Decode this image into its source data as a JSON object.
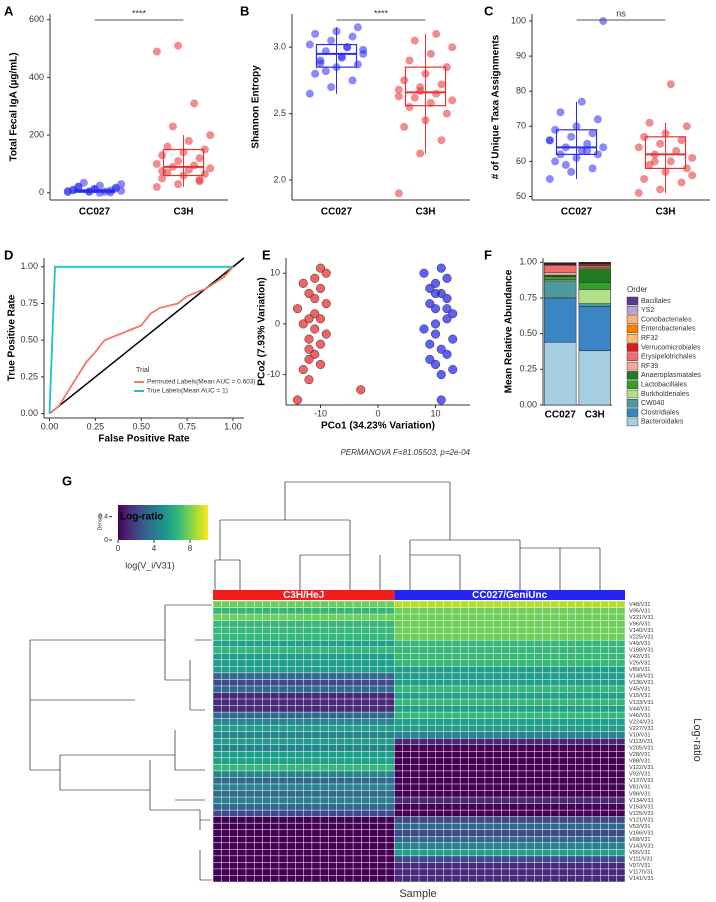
{
  "chart_data": [
    {
      "type": "box",
      "panel": "A",
      "ylabel": "Total Fecal IgA (µg/mL)",
      "categories": [
        "CC027",
        "C3H"
      ],
      "colors": [
        "#2b2bf0",
        "#e8302f"
      ],
      "ylim": [
        -25,
        620
      ],
      "yticks": [
        0,
        200,
        400,
        600
      ],
      "significance": "****",
      "boxes": [
        {
          "q1": 2,
          "median": 5,
          "q3": 10,
          "low": 0,
          "high": 25,
          "points": [
            2,
            5,
            8,
            10,
            12,
            15,
            20,
            25,
            30,
            35,
            4,
            6,
            3,
            1,
            9,
            14,
            18,
            22,
            0,
            7
          ]
        },
        {
          "q1": 60,
          "median": 90,
          "q3": 150,
          "low": 20,
          "high": 200,
          "points": [
            20,
            30,
            45,
            50,
            60,
            65,
            70,
            80,
            85,
            90,
            95,
            100,
            110,
            120,
            130,
            140,
            150,
            160,
            180,
            200,
            230,
            310,
            490,
            510,
            40,
            75
          ]
        }
      ]
    },
    {
      "type": "box",
      "panel": "B",
      "ylabel": "Shannon Entropy",
      "categories": [
        "CC027",
        "C3H"
      ],
      "colors": [
        "#2b2bf0",
        "#e8302f"
      ],
      "ylim": [
        1.85,
        3.25
      ],
      "yticks": [
        {
          "value": 2,
          "label": "2.0"
        },
        2.5,
        {
          "value": 3,
          "label": "3.0"
        }
      ],
      "significance": "****",
      "boxes": [
        {
          "q1": 2.85,
          "median": 2.95,
          "q3": 3.02,
          "low": 2.65,
          "high": 3.15,
          "points": [
            2.65,
            2.7,
            2.75,
            2.8,
            2.85,
            2.87,
            2.9,
            2.92,
            2.95,
            2.97,
            3.0,
            3.02,
            3.05,
            3.08,
            3.1,
            3.12,
            3.15,
            2.88,
            2.93,
            2.98,
            2.82,
            3.0
          ]
        },
        {
          "q1": 2.56,
          "median": 2.66,
          "q3": 2.85,
          "low": 2.2,
          "high": 3.1,
          "points": [
            1.9,
            2.2,
            2.3,
            2.4,
            2.45,
            2.5,
            2.55,
            2.58,
            2.6,
            2.62,
            2.65,
            2.68,
            2.7,
            2.72,
            2.75,
            2.8,
            2.85,
            2.9,
            2.95,
            3.0,
            3.05,
            3.1,
            2.63,
            2.67
          ]
        }
      ]
    },
    {
      "type": "box",
      "panel": "C",
      "ylabel": "# of Unique Taxa Assignments",
      "categories": [
        "CC027",
        "C3H"
      ],
      "colors": [
        "#2b2bf0",
        "#e8302f"
      ],
      "ylim": [
        49,
        102
      ],
      "yticks": [
        50,
        60,
        70,
        80,
        90,
        100
      ],
      "significance": "ns",
      "boxes": [
        {
          "q1": 62,
          "median": 64,
          "q3": 69,
          "low": 55,
          "high": 77,
          "points": [
            55,
            57,
            58,
            60,
            61,
            62,
            62,
            63,
            64,
            64,
            65,
            66,
            67,
            68,
            69,
            70,
            72,
            74,
            77,
            100,
            59,
            63,
            66
          ]
        },
        {
          "q1": 58,
          "median": 62,
          "q3": 67,
          "low": 51,
          "high": 71,
          "points": [
            51,
            52,
            54,
            55,
            57,
            58,
            59,
            60,
            61,
            62,
            63,
            64,
            65,
            66,
            67,
            68,
            70,
            71,
            82,
            56,
            60
          ]
        }
      ]
    },
    {
      "type": "line",
      "panel": "D",
      "xlabel": "False Positive Rate",
      "ylabel": "True Positive Rate",
      "legend_title": "Trial",
      "legend": "bottom-right",
      "xlim": [
        -0.03,
        1.06
      ],
      "ylim": [
        -0.03,
        1.06
      ],
      "xticks": [
        {
          "value": 0,
          "label": "0.00"
        },
        {
          "value": 0.25,
          "label": "0.25"
        },
        {
          "value": 0.5,
          "label": "0.50"
        },
        {
          "value": 0.75,
          "label": "0.75"
        },
        {
          "value": 1,
          "label": "1.00"
        }
      ],
      "yticks": [
        {
          "value": 0,
          "label": "0.00"
        },
        {
          "value": 0.25,
          "label": "0.25"
        },
        {
          "value": 0.5,
          "label": "0.50"
        },
        {
          "value": 0.75,
          "label": "0.75"
        },
        {
          "value": 1,
          "label": "1.00"
        }
      ],
      "series": [
        {
          "name": "Permuted Labels(Mean AUC = 0.603)",
          "color": "#f07860",
          "x": [
            0,
            0.05,
            0.1,
            0.15,
            0.2,
            0.25,
            0.3,
            0.4,
            0.5,
            0.55,
            0.6,
            0.7,
            0.75,
            0.85,
            0.95,
            1
          ],
          "y": [
            0,
            0.05,
            0.15,
            0.25,
            0.35,
            0.42,
            0.5,
            0.55,
            0.6,
            0.68,
            0.72,
            0.75,
            0.8,
            0.85,
            0.93,
            1
          ]
        },
        {
          "name": "True Labels(Mean AUC = 1)",
          "color": "#1fc0c8",
          "x": [
            0,
            0.03,
            1
          ],
          "y": [
            0,
            1,
            1
          ]
        }
      ]
    },
    {
      "type": "scatter",
      "panel": "E",
      "xlabel": "PCo1 (34.23% Variation)",
      "ylabel": "PCo2 (7.93% Variation)",
      "note": "PERMANOVA F=81.05503, p=2e-04",
      "xlim": [
        -16,
        16
      ],
      "ylim": [
        -16,
        13
      ],
      "xticks": [
        -10,
        0,
        10
      ],
      "yticks": [
        -10,
        0,
        10
      ],
      "series": [
        {
          "color": "#e8302f",
          "x": [
            -14,
            -13,
            -12,
            -12,
            -11,
            -11,
            -10,
            -10,
            -9,
            -9,
            -13,
            -12,
            -11,
            -10,
            -12,
            -14,
            -11,
            -10,
            -13,
            -12,
            -9,
            -11,
            -3,
            -10,
            -12
          ],
          "y": [
            3,
            0,
            6,
            -3,
            9,
            -6,
            11,
            1,
            -2,
            4,
            -9,
            -11,
            2,
            7,
            -5,
            -15,
            5,
            -4,
            8,
            -7,
            10,
            -1,
            -13,
            -8,
            1
          ]
        },
        {
          "color": "#2b2bf0",
          "x": [
            8,
            9,
            10,
            10,
            11,
            11,
            12,
            12,
            13,
            9,
            10,
            11,
            12,
            8,
            13,
            9,
            10,
            11,
            12,
            10,
            11,
            9,
            12,
            13,
            10
          ],
          "y": [
            10,
            7,
            3,
            -2,
            6,
            -5,
            1,
            9,
            -3,
            4,
            -8,
            -10,
            5,
            -1,
            2,
            -4,
            0,
            11,
            -6,
            8,
            -15,
            -7,
            3,
            -9,
            6
          ]
        }
      ]
    },
    {
      "type": "stacked_bar",
      "panel": "F",
      "ylabel": "Mean Relative Abundance",
      "legend_title": "Order",
      "categories": [
        "CC027",
        "C3H"
      ],
      "ylim": [
        0,
        1.03
      ],
      "yticks": [
        {
          "value": 0,
          "label": "0.00"
        },
        {
          "value": 0.25,
          "label": "0.25"
        },
        {
          "value": 0.5,
          "label": "0.50"
        },
        {
          "value": 0.75,
          "label": "0.75"
        },
        {
          "value": 1,
          "label": "1.00"
        }
      ],
      "series": [
        {
          "name": "Bacillales",
          "color": "#5a3c8c",
          "values": [
            0.002,
            0.002
          ]
        },
        {
          "name": "YS2",
          "color": "#b9a3d3",
          "values": [
            0.002,
            0.002
          ]
        },
        {
          "name": "Coriobacteriales",
          "color": "#f7b37a",
          "values": [
            0.002,
            0.003
          ]
        },
        {
          "name": "Enterobacteriales",
          "color": "#ff7f00",
          "values": [
            0.003,
            0.003
          ]
        },
        {
          "name": "RF32",
          "color": "#fdbf6f",
          "values": [
            0.003,
            0.005
          ]
        },
        {
          "name": "Verrucomicrobiales",
          "color": "#e31a1c",
          "values": [
            0.005,
            0.01
          ]
        },
        {
          "name": "Erysipelotrichales",
          "color": "#f26b6b",
          "values": [
            0.05,
            0.01
          ]
        },
        {
          "name": "RF39",
          "color": "#f4a6a0",
          "values": [
            0.02,
            0.01
          ]
        },
        {
          "name": "Anaeroplasmatales",
          "color": "#227a22",
          "values": [
            0.01,
            0.095
          ]
        },
        {
          "name": "Lactobacillales",
          "color": "#33a02c",
          "values": [
            0.02,
            0.05
          ]
        },
        {
          "name": "Burkholderiales",
          "color": "#b2df8a",
          "values": [
            0.01,
            0.1
          ]
        },
        {
          "name": "CW040",
          "color": "#4e9a9a",
          "values": [
            0.12,
            0.02
          ]
        },
        {
          "name": "Clostridiales",
          "color": "#3a86c4",
          "values": [
            0.31,
            0.31
          ]
        },
        {
          "name": "Bacteroidales",
          "color": "#a6cee3",
          "values": [
            0.44,
            0.38
          ]
        }
      ]
    },
    {
      "type": "heatmap",
      "panel": "G",
      "xlabel": "Sample",
      "ylabel": "Log-ratio",
      "legend_title": "Log-ratio",
      "legend_xlabel": "log(V_i/V31)",
      "legend_ylabel": "Density",
      "colorlim": [
        0,
        10
      ],
      "colorticks": [
        0,
        4,
        8
      ],
      "density_ylim": [
        0,
        0.6
      ],
      "density_ticks": [
        0,
        0.4
      ],
      "rows": [
        "V48/V31",
        "V95/V31",
        "V221/V31",
        "V96/V31",
        "V140/V31",
        "V225/V31",
        "V49/V31",
        "V188/V31",
        "V42/V31",
        "V25/V31",
        "V89/V31",
        "V148/V31",
        "V136/V31",
        "V45/V31",
        "V15/V31",
        "V133/V31",
        "V44/V31",
        "V46/V31",
        "V224/V31",
        "V227/V31",
        "V10/V31",
        "V113/V31",
        "V205/V31",
        "V28/V31",
        "V88/V31",
        "V122/V31",
        "V92/V31",
        "V137/V31",
        "V81/V31",
        "V98/V31",
        "V134/V31",
        "V153/V31",
        "V125/V31",
        "V121/V31",
        "V52/V31",
        "V166/V31",
        "V68/V31",
        "V143/V31",
        "V55/V31",
        "V111/V31",
        "V97/V31",
        "V117/V31",
        "V141/V31"
      ],
      "series": [
        {
          "name": "C3H/HeJ",
          "color": "#f21d1d",
          "values": [
            8,
            7,
            8,
            7,
            7,
            7,
            6,
            7,
            6,
            6,
            5,
            3,
            2,
            3,
            1,
            1,
            1,
            3,
            4,
            5,
            4,
            5,
            4,
            5,
            6,
            7,
            4,
            3,
            4,
            3,
            4,
            3,
            2,
            0,
            0,
            0,
            0,
            0,
            0,
            0,
            0,
            0,
            0
          ]
        },
        {
          "name": "CC027/GeniUnc",
          "color": "#2424f2",
          "values": [
            9,
            8,
            8,
            8,
            8,
            8,
            7,
            7,
            7,
            7,
            6,
            6,
            6,
            7,
            6,
            7,
            6,
            7,
            5,
            5,
            4,
            1,
            0,
            0,
            0,
            0,
            0,
            0,
            0,
            0,
            1,
            0,
            0,
            2,
            3,
            2,
            3,
            4,
            6,
            2,
            1,
            1,
            1
          ]
        }
      ]
    }
  ]
}
